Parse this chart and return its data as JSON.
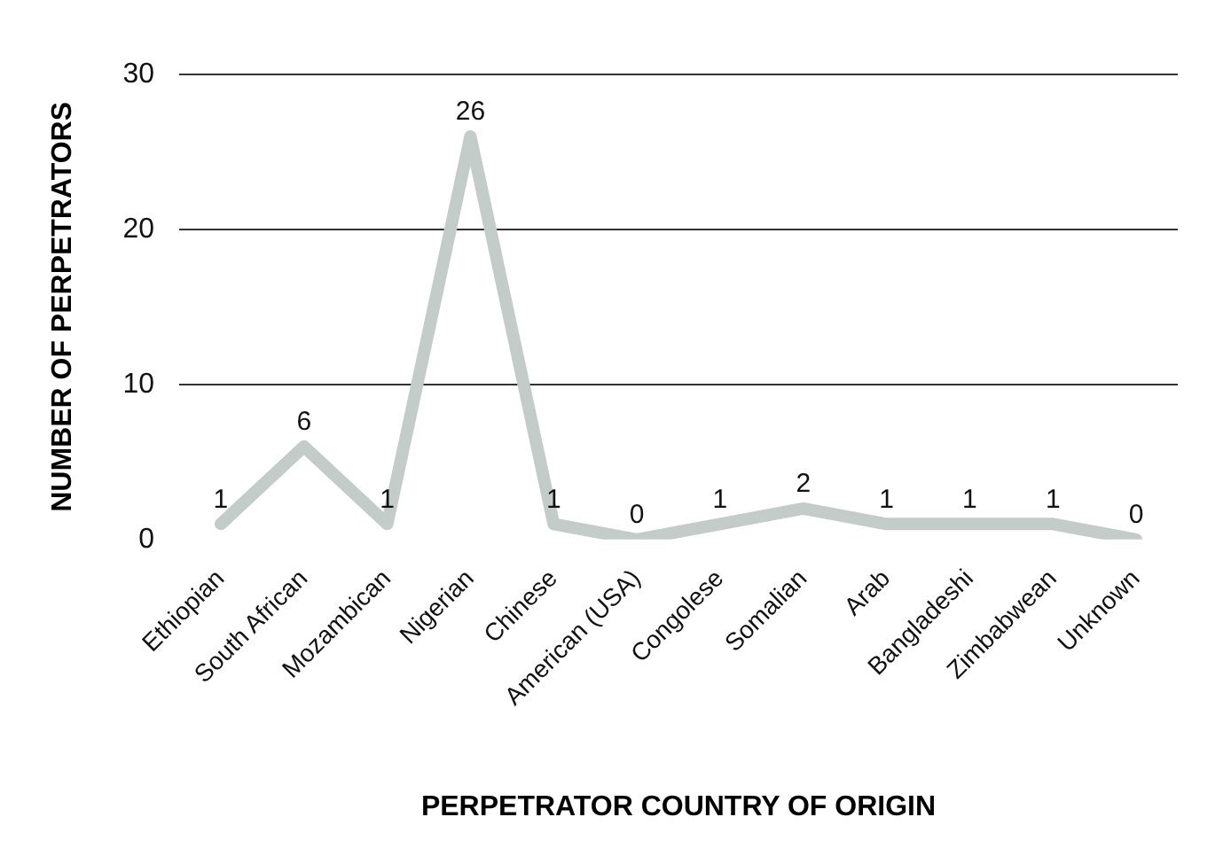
{
  "chart_data": {
    "type": "line",
    "xlabel": "PERPETRATOR COUNTRY OF ORIGIN",
    "ylabel": "NUMBER OF PERPETRATORS",
    "categories": [
      "Ethiopian",
      "South African",
      "Mozambican",
      "Nigerian",
      "Chinese",
      "American (USA)",
      "Congolese",
      "Somalian",
      "Arab",
      "Bangladeshi",
      "Zimbabwean",
      "Unknown"
    ],
    "values": [
      1,
      6,
      1,
      26,
      1,
      0,
      1,
      2,
      1,
      1,
      1,
      0
    ],
    "color": "#c3ccc9",
    "ylim": [
      0,
      30
    ],
    "yticks": [
      0,
      10,
      20,
      30
    ],
    "grid": "y",
    "data_labels": true,
    "marker": "none",
    "line_style": "solid"
  }
}
